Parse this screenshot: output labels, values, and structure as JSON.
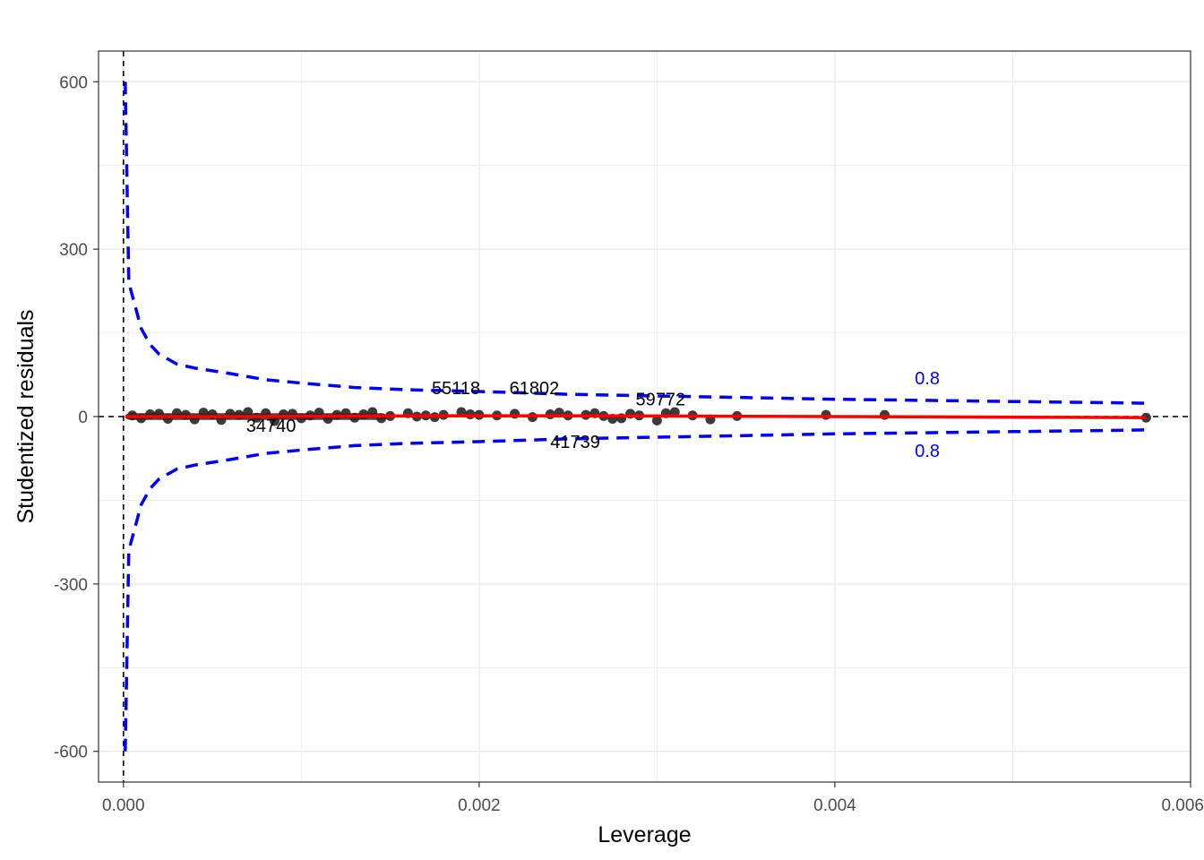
{
  "chart_data": {
    "type": "scatter",
    "title": "",
    "xlabel": "Leverage",
    "ylabel": "Studentized residuals",
    "xlim": [
      -0.00014,
      0.006
    ],
    "ylim": [
      -655,
      655
    ],
    "x_ticks": [
      {
        "value": 0.0,
        "label": "0.000"
      },
      {
        "value": 0.002,
        "label": "0.002"
      },
      {
        "value": 0.004,
        "label": "0.004"
      },
      {
        "value": 0.006,
        "label": "0.006"
      }
    ],
    "y_ticks": [
      {
        "value": 600,
        "label": "600"
      },
      {
        "value": 300,
        "label": "300"
      },
      {
        "value": 0,
        "label": "0"
      },
      {
        "value": -300,
        "label": "-300"
      },
      {
        "value": -600,
        "label": "-600"
      }
    ],
    "grid": true,
    "reference_lines": {
      "x": 0,
      "y": 0,
      "style": "dashed",
      "color": "#000000"
    },
    "point_color": "#262626",
    "smooth_color": "#ff0000",
    "contour_color": "#0000ff",
    "cook_contour": {
      "level": 0.8,
      "label": "0.8",
      "num_params": 2,
      "x": [
        1e-05,
        3e-05,
        6e-05,
        0.0001,
        0.00015,
        0.0002,
        0.0003,
        0.0004,
        0.0006,
        0.0008,
        0.001,
        0.0013,
        0.0016,
        0.002,
        0.0025,
        0.003,
        0.0035,
        0.004,
        0.0045,
        0.005,
        0.0055,
        0.00575
      ],
      "upper": [
        600,
        240,
        205,
        158,
        129,
        112,
        94,
        87,
        77,
        66,
        60,
        52,
        48,
        45,
        40,
        37,
        34,
        31,
        29,
        27,
        25,
        24
      ],
      "lower": [
        -600,
        -240,
        -205,
        -158,
        -129,
        -112,
        -94,
        -87,
        -77,
        -66,
        -60,
        -52,
        -48,
        -45,
        -40,
        -37,
        -34,
        -31,
        -29,
        -27,
        -25,
        -24
      ],
      "label_positions": [
        {
          "x": 0.00452,
          "y": 58
        },
        {
          "x": 0.00452,
          "y": -72
        }
      ]
    },
    "smooth": {
      "x": [
        1e-05,
        0.0005,
        0.001,
        0.0015,
        0.002,
        0.0025,
        0.003,
        0.0035,
        0.004,
        0.0045,
        0.0049,
        0.0053,
        0.00575
      ],
      "y": [
        0,
        0,
        0.5,
        1,
        1.5,
        1.5,
        1,
        0.5,
        0,
        -0.5,
        -1,
        -1.5,
        -2
      ]
    },
    "points": {
      "x": [
        5e-05,
        0.0001,
        0.00015,
        0.0002,
        0.00025,
        0.0003,
        0.00035,
        0.0004,
        0.00045,
        0.0005,
        0.00055,
        0.0006,
        0.00065,
        0.0007,
        0.00075,
        0.0008,
        0.00085,
        0.0009,
        0.00095,
        0.001,
        0.00105,
        0.0011,
        0.00115,
        0.0012,
        0.00125,
        0.0013,
        0.00135,
        0.0014,
        0.00145,
        0.0015,
        0.0016,
        0.00165,
        0.0017,
        0.00175,
        0.0018,
        0.0019,
        0.00195,
        0.002,
        0.0021,
        0.0022,
        0.0023,
        0.0024,
        0.00245,
        0.0025,
        0.0026,
        0.00265,
        0.0027,
        0.00275,
        0.0028,
        0.00285,
        0.0029,
        0.003,
        0.00305,
        0.0031,
        0.0032,
        0.0033,
        0.00345,
        0.00395,
        0.00428,
        0.00575
      ],
      "y": [
        2,
        -3,
        4,
        5,
        -4,
        6,
        3,
        -5,
        7,
        4,
        -6,
        5,
        3,
        8,
        -2,
        6,
        -8,
        4,
        5,
        -3,
        2,
        7,
        -4,
        3,
        6,
        -2,
        4,
        8,
        -3,
        1,
        6,
        0,
        2,
        -1,
        3,
        8,
        4,
        3,
        2,
        5,
        -1,
        4,
        7,
        2,
        3,
        6,
        1,
        -4,
        -3,
        5,
        2,
        -7,
        6,
        8,
        2,
        -5,
        1,
        3,
        3,
        -2
      ]
    },
    "point_labels": [
      {
        "id": "34740",
        "x": 0.00083,
        "y": -27
      },
      {
        "id": "55118",
        "x": 0.00187,
        "y": 40
      },
      {
        "id": "61802",
        "x": 0.00231,
        "y": 40
      },
      {
        "id": "59772",
        "x": 0.00302,
        "y": 20
      },
      {
        "id": "41739",
        "x": 0.00254,
        "y": -56
      }
    ]
  }
}
